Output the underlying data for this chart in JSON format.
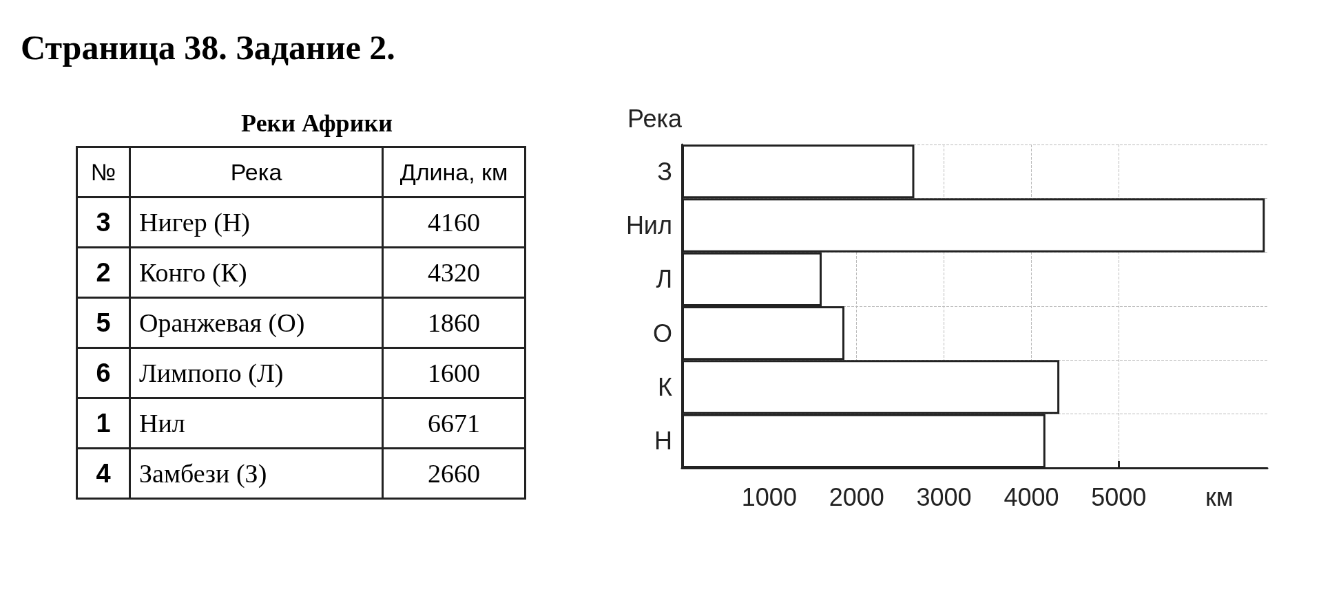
{
  "chart_data": [
    {
      "type": "other",
      "title": "Страница 38. Задание 2.",
      "subtitle": "Реки Африки",
      "xlabel": "Река",
      "data_labels": true,
      "categories": [
        "Нигер (Н)",
        "Конго (К)",
        "Оранжевая (О)",
        "Лимпопо (Л)",
        "Нил",
        "Замбези (З)"
      ],
      "series": [
        {
          "name": "№",
          "values": [
            3,
            2,
            5,
            6,
            1,
            4
          ]
        },
        {
          "name": "Длина, км",
          "values": [
            4160,
            4320,
            1860,
            1600,
            6671,
            2660
          ]
        }
      ]
    },
    {
      "type": "bar",
      "orientation": "horizontal",
      "ylabel": "Река",
      "xlabel": "км",
      "categories": [
        "З",
        "Нил",
        "Л",
        "О",
        "К",
        "Н"
      ],
      "values": [
        2660,
        6671,
        1600,
        1860,
        4320,
        4160
      ],
      "color": "#ffffff",
      "xlim": [
        0,
        6700
      ],
      "xticks": [
        1000,
        2000,
        3000,
        4000,
        5000
      ],
      "grid": true
    }
  ]
}
